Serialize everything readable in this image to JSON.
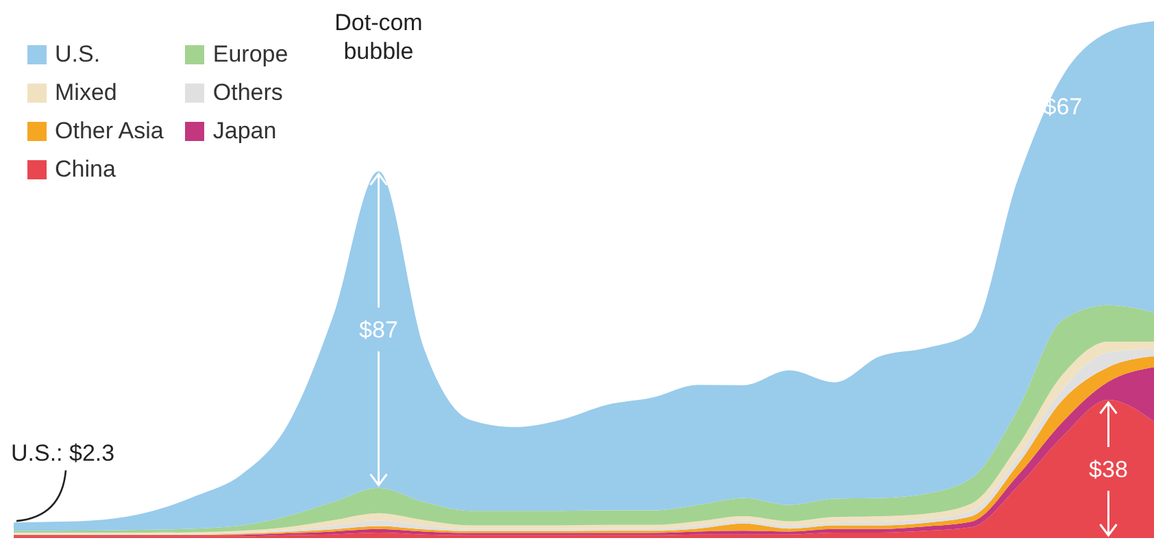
{
  "chart_data": {
    "type": "area",
    "stacked": true,
    "categories": [
      null,
      null,
      null,
      null,
      null,
      null,
      null,
      null,
      null,
      null,
      null,
      null,
      null,
      null,
      null,
      null,
      null,
      null,
      null,
      null,
      null,
      null,
      null,
      null,
      null,
      null
    ],
    "series": [
      {
        "name": "China",
        "color": "#e8474f",
        "values": [
          0.5,
          0.5,
          0.5,
          0.5,
          0.5,
          0.5,
          0.8,
          1,
          1.5,
          1,
          0.8,
          0.8,
          0.8,
          0.8,
          0.8,
          1,
          1,
          1,
          1.5,
          1.5,
          2,
          3,
          14,
          28,
          38,
          32
        ],
        "value_labels": [
          null,
          null,
          null,
          null,
          null,
          null,
          null,
          null,
          null,
          null,
          null,
          null,
          null,
          null,
          null,
          null,
          null,
          null,
          null,
          null,
          null,
          null,
          null,
          null,
          "$38",
          null
        ]
      },
      {
        "name": "Japan",
        "color": "#c2377e",
        "values": [
          0.3,
          0.3,
          0.3,
          0.3,
          0.3,
          0.4,
          0.5,
          0.8,
          1,
          0.8,
          0.6,
          0.6,
          0.6,
          0.6,
          0.6,
          0.8,
          1,
          0.8,
          1,
          1,
          1.2,
          1.5,
          3,
          4,
          5,
          15
        ]
      },
      {
        "name": "Other Asia",
        "color": "#f5a623",
        "values": [
          0.2,
          0.2,
          0.2,
          0.2,
          0.2,
          0.3,
          0.4,
          0.6,
          0.8,
          0.6,
          0.5,
          0.5,
          0.5,
          0.6,
          0.6,
          0.8,
          2,
          0.8,
          1,
          1,
          1,
          1.5,
          3,
          6,
          4,
          3
        ]
      },
      {
        "name": "Others",
        "color": "#e0e0e0",
        "values": [
          0.2,
          0.2,
          0.2,
          0.2,
          0.2,
          0.3,
          0.5,
          1,
          1.5,
          1,
          0.6,
          0.6,
          0.6,
          0.6,
          0.6,
          0.8,
          0.8,
          0.8,
          0.8,
          1,
          1,
          1.5,
          2,
          3,
          4,
          2
        ]
      },
      {
        "name": "Mixed",
        "color": "#f0e2c0",
        "values": [
          0.3,
          0.3,
          0.3,
          0.3,
          0.4,
          0.5,
          0.8,
          1.5,
          2,
          1.5,
          1,
          1,
          1,
          1,
          1,
          1.2,
          1.2,
          1.2,
          1.5,
          1.5,
          1.5,
          2,
          3,
          4,
          3,
          2
        ]
      },
      {
        "name": "Europe",
        "color": "#a3d391",
        "values": [
          0.5,
          0.5,
          0.6,
          0.8,
          1,
          1.5,
          3,
          5,
          7,
          5,
          4,
          4,
          4,
          4,
          4,
          4.5,
          5,
          4.5,
          5,
          5,
          5.5,
          7,
          10,
          15,
          10,
          8
        ]
      },
      {
        "name": "U.S.",
        "color": "#99cbeb",
        "values": [
          2.3,
          2.5,
          3,
          5,
          9,
          14,
          25,
          51,
          87,
          42,
          25,
          23,
          25,
          29,
          31,
          33,
          31,
          37,
          32,
          39,
          40,
          40,
          63,
          67,
          75,
          80
        ],
        "value_labels": [
          null,
          null,
          null,
          null,
          null,
          null,
          null,
          null,
          "$87",
          null,
          null,
          null,
          null,
          null,
          null,
          null,
          null,
          null,
          null,
          null,
          null,
          null,
          null,
          "$67",
          null,
          null
        ]
      }
    ],
    "annotations": [
      "Dot-com bubble",
      "U.S.: $2.3"
    ],
    "legend": "top left"
  }
}
